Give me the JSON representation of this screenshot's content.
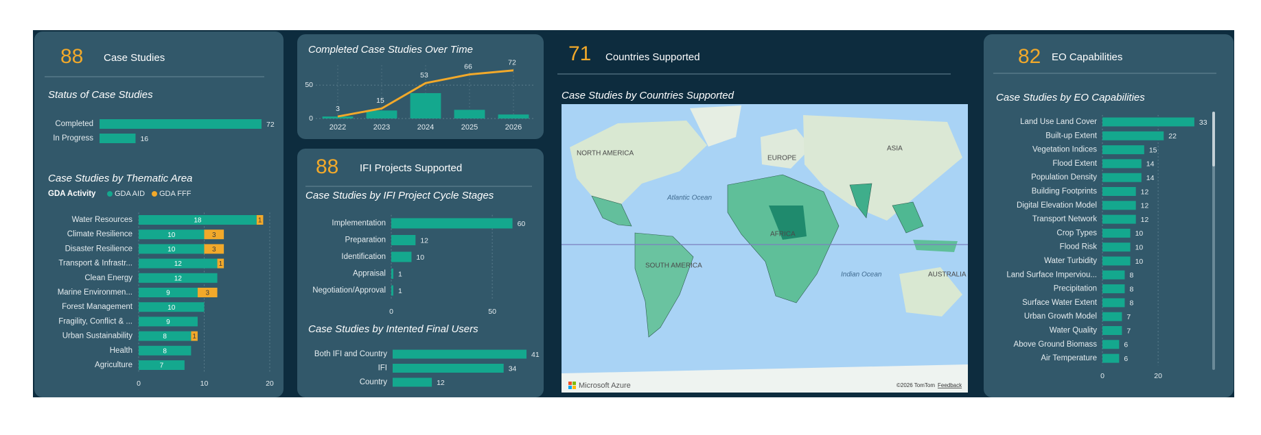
{
  "kpis": [
    {
      "value": 88,
      "label": "Case Studies"
    },
    {
      "value": 88,
      "label": "IFI Projects Supported"
    },
    {
      "value": 71,
      "label": "Countries Supported"
    },
    {
      "value": 82,
      "label": "EO Capabilities"
    }
  ],
  "map": {
    "title": "Case Studies by Countries Supported",
    "labels": [
      "NORTH AMERICA",
      "EUROPE",
      "ASIA",
      "AFRICA",
      "SOUTH AMERICA",
      "AUSTRALIA"
    ],
    "oceans": [
      "Atlantic Ocean",
      "Indian Ocean"
    ],
    "brand": "Microsoft Azure",
    "copyright": "©2026 TomTom",
    "feedback": "Feedback"
  },
  "chart_data": [
    {
      "type": "hbar",
      "title": "Status of Case Studies",
      "categories": [
        "Completed",
        "In Progress"
      ],
      "values": [
        72,
        16
      ],
      "color": "#14a88e"
    },
    {
      "type": "hbar",
      "title": "Case Studies by Thematic Area",
      "legend_title": "GDA Activity",
      "categories": [
        "Water Resources",
        "Climate Resilience",
        "Disaster Resilience",
        "Transport & Infrastr...",
        "Clean Energy",
        "Marine Environmen...",
        "Forest Management",
        "Fragility, Conflict & ...",
        "Urban Sustainability",
        "Health",
        "Agriculture"
      ],
      "series": [
        {
          "name": "GDA AID",
          "color": "#14a88e",
          "values": [
            18,
            10,
            10,
            12,
            12,
            9,
            10,
            9,
            8,
            8,
            7
          ]
        },
        {
          "name": "GDA FFF",
          "color": "#f2a92a",
          "values": [
            1,
            3,
            3,
            1,
            null,
            3,
            null,
            null,
            1,
            null,
            null
          ]
        }
      ],
      "xlim": [
        0,
        21
      ],
      "xticks": [
        0,
        10,
        20
      ],
      "grid": true
    },
    {
      "type": "combo",
      "title": "Completed Case Studies Over Time",
      "categories": [
        "2022",
        "2023",
        "2024",
        "2025",
        "2026"
      ],
      "series": [
        {
          "type": "bar",
          "color": "#14a88e",
          "values": [
            3,
            12,
            38,
            13,
            6
          ]
        },
        {
          "type": "line",
          "color": "#f2a92a",
          "values": [
            3,
            15,
            53,
            66,
            72
          ]
        }
      ],
      "ylim": [
        0,
        80
      ],
      "yticks": [
        0,
        50
      ],
      "grid": true
    },
    {
      "type": "hbar",
      "title": "Case Studies by IFI Project Cycle Stages",
      "categories": [
        "Implementation",
        "Preparation",
        "Identification",
        "Appraisal",
        "Negotiation/Approval"
      ],
      "values": [
        60,
        12,
        10,
        1,
        1
      ],
      "color": "#14a88e",
      "xlim": [
        0,
        70
      ],
      "xticks": [
        0,
        50
      ],
      "grid": true
    },
    {
      "type": "hbar",
      "title": "Case Studies by Intented Final Users",
      "categories": [
        "Both IFI and Country",
        "IFI",
        "Country"
      ],
      "values": [
        41,
        34,
        12
      ],
      "color": "#14a88e"
    },
    {
      "type": "hbar",
      "title": "Case Studies by EO Capabilities",
      "categories": [
        "Land Use Land Cover",
        "Built-up Extent",
        "Vegetation Indices",
        "Flood Extent",
        "Population Density",
        "Building Footprints",
        "Digital Elevation Model",
        "Transport Network",
        "Crop Types",
        "Flood Risk",
        "Water Turbidity",
        "Land Surface Imperviou...",
        "Precipitation",
        "Surface Water Extent",
        "Urban Growth Model",
        "Water Quality",
        "Above Ground Biomass",
        "Air Temperature"
      ],
      "values": [
        33,
        22,
        15,
        14,
        14,
        12,
        12,
        12,
        10,
        10,
        10,
        8,
        8,
        8,
        7,
        7,
        6,
        6
      ],
      "color": "#14a88e",
      "xlim": [
        0,
        35
      ],
      "xticks": [
        0,
        20
      ],
      "grid": true
    }
  ]
}
